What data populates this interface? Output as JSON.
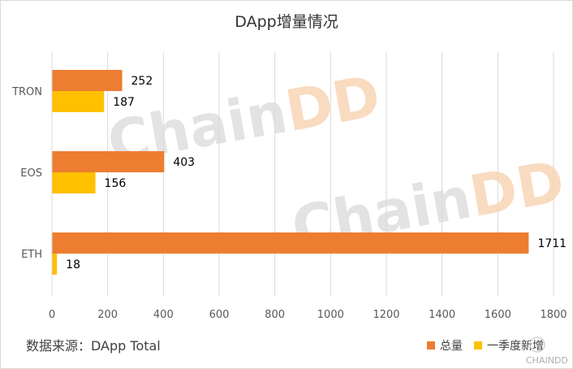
{
  "chart_data": {
    "type": "bar",
    "orientation": "horizontal",
    "title": "DApp增量情况",
    "categories": [
      "TRON",
      "EOS",
      "ETH"
    ],
    "series": [
      {
        "name": "总量",
        "values": [
          252,
          403,
          1711
        ],
        "color": "#ED7D31"
      },
      {
        "name": "一季度新增",
        "values": [
          187,
          156,
          18
        ],
        "color": "#FFC000"
      }
    ],
    "xlim": [
      0,
      1800
    ],
    "xticks": [
      0,
      200,
      400,
      600,
      800,
      1000,
      1200,
      1400,
      1600,
      1800
    ],
    "grid": true,
    "legend_position": "bottom-right"
  },
  "source_note": "数据来源：DApp Total",
  "watermark": {
    "text_part1": "Chain",
    "text_part2": "DD",
    "color1": "#d9d9d9",
    "color2": "#f8d2b0",
    "logo_text": "CHAINDD"
  }
}
